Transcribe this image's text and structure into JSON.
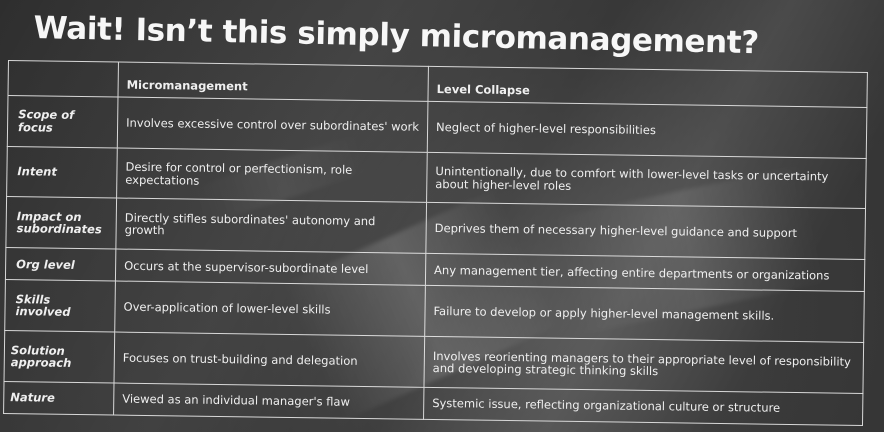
{
  "slide": {
    "title": "Wait! Isn’t this simply micromanagement?",
    "table": {
      "headers": [
        "",
        "Micromanagement",
        "Level Collapse"
      ],
      "rows": [
        {
          "label": "Scope of focus",
          "micromanagement": "Involves excessive control over subordinates' work",
          "level_collapse": "Neglect of higher-level responsibilities"
        },
        {
          "label": "Intent",
          "micromanagement": "Desire for control or perfectionism, role expectations",
          "level_collapse": "Unintentionally, due to comfort with lower-level tasks or uncertainty about higher-level roles"
        },
        {
          "label": "Impact on subordinates",
          "micromanagement": "Directly stifles subordinates' autonomy and growth",
          "level_collapse": "Deprives them of necessary higher-level guidance and support"
        },
        {
          "label": "Org level",
          "micromanagement": "Occurs at the supervisor-subordinate level",
          "level_collapse": "Any management tier, affecting entire departments or organizations"
        },
        {
          "label": "Skills involved",
          "micromanagement": "Over-application of lower-level skills",
          "level_collapse": "Failure to develop or apply higher-level management skills."
        },
        {
          "label": "Solution approach",
          "micromanagement": "Focuses on trust-building and delegation",
          "level_collapse": "Involves reorienting managers to their appropriate level of responsibility and developing strategic thinking skills"
        },
        {
          "label": "Nature",
          "micromanagement": "Viewed as an individual manager's flaw",
          "level_collapse": "Systemic issue, reflecting organizational culture or structure"
        }
      ]
    }
  }
}
